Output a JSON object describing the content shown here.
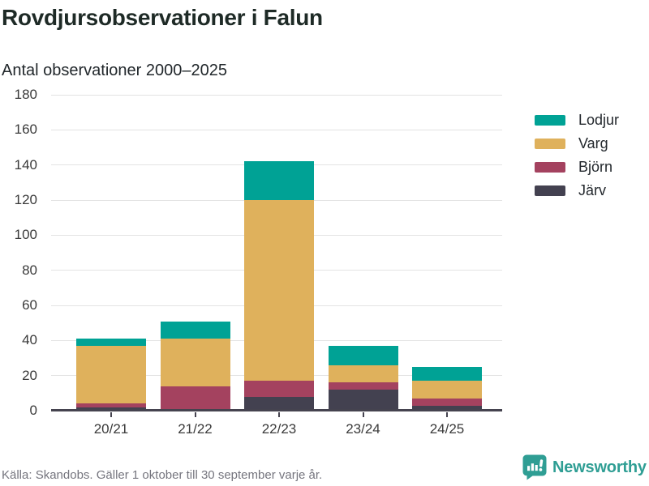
{
  "header": {
    "title": "Rovdjursobservationer i Falun",
    "subtitle": "Antal observationer 2000–2025"
  },
  "chart_data": {
    "type": "bar",
    "stacked": true,
    "stack_order": "bottom-to-top",
    "title": "Rovdjursobservationer i Falun",
    "subtitle": "Antal observationer 2000–2025",
    "categories": [
      "20/21",
      "21/22",
      "22/23",
      "23/24",
      "24/25"
    ],
    "series": [
      {
        "name": "Järv",
        "color": "#434150",
        "values": [
          2,
          0,
          8,
          12,
          3
        ]
      },
      {
        "name": "Björn",
        "color": "#a4425f",
        "values": [
          2,
          14,
          9,
          4,
          4
        ]
      },
      {
        "name": "Varg",
        "color": "#dfb15c",
        "values": [
          33,
          27,
          103,
          10,
          10
        ]
      },
      {
        "name": "Lodjur",
        "color": "#00a295",
        "values": [
          4,
          10,
          22,
          11,
          8
        ]
      }
    ],
    "totals": [
      41,
      51,
      142,
      37,
      25
    ],
    "ylim": [
      0,
      180
    ],
    "yticks": [
      0,
      20,
      40,
      60,
      80,
      100,
      120,
      140,
      160,
      180
    ],
    "xlabel": "",
    "ylabel": "",
    "grid": "horizontal",
    "legend_position": "right",
    "legend_order": [
      "Lodjur",
      "Varg",
      "Björn",
      "Järv"
    ]
  },
  "footer": {
    "source_note": "Källa: Skandobs. Gäller 1 oktober till 30 september varje år.",
    "brand_name": "Newsworthy"
  },
  "colors": {
    "teal": "#00a295",
    "gold": "#dfb15c",
    "maroon": "#a4425f",
    "dark_slate": "#434150",
    "brand_teal": "#2f9e94",
    "grid": "#e3e3e3",
    "axis": "#45434f"
  }
}
